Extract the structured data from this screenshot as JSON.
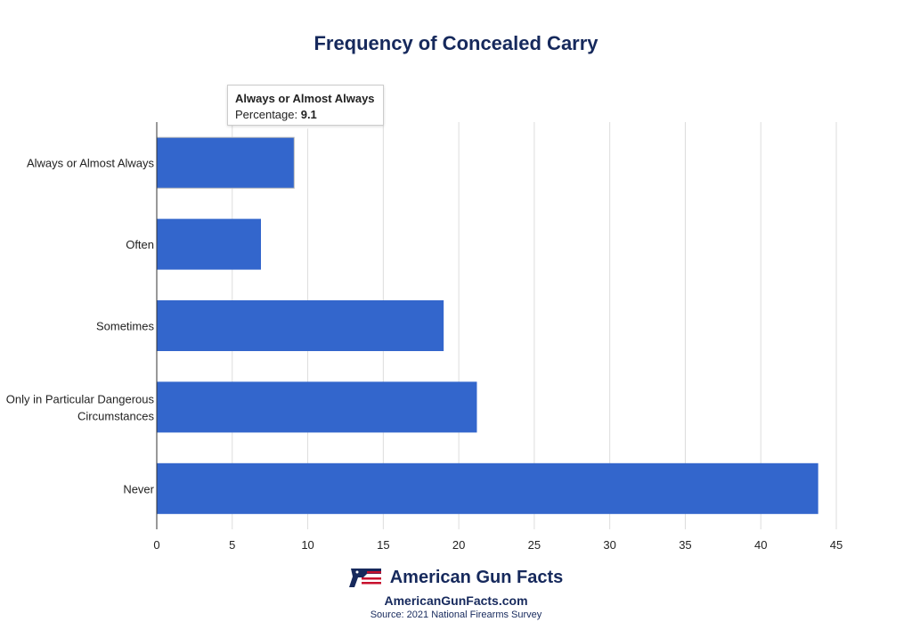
{
  "chart_data": {
    "type": "bar",
    "orientation": "horizontal",
    "title": "Frequency of Concealed Carry",
    "categories": [
      "Always or Almost Always",
      "Often",
      "Sometimes",
      "Only in Particular Dangerous Circumstances",
      "Never"
    ],
    "category_lines": [
      [
        "Always or Almost Always"
      ],
      [
        "Often"
      ],
      [
        "Sometimes"
      ],
      [
        "Only in Particular Dangerous",
        "Circumstances"
      ],
      [
        "Never"
      ]
    ],
    "series": [
      {
        "name": "Percentage",
        "values": [
          9.1,
          6.9,
          19.0,
          21.2,
          43.8
        ]
      }
    ],
    "xlim": [
      0,
      45
    ],
    "xticks": [
      0,
      5,
      10,
      15,
      20,
      25,
      30,
      35,
      40,
      45
    ],
    "grid": true,
    "bar_color": "#3366cc",
    "xlabel": "",
    "ylabel": ""
  },
  "tooltip": {
    "category": "Always or Almost Always",
    "label": "Percentage: ",
    "value": "9.1"
  },
  "footer": {
    "brand": "American Gun Facts",
    "site": "AmericanGunFacts.com",
    "source": "Source: 2021 National Firearms Survey"
  }
}
